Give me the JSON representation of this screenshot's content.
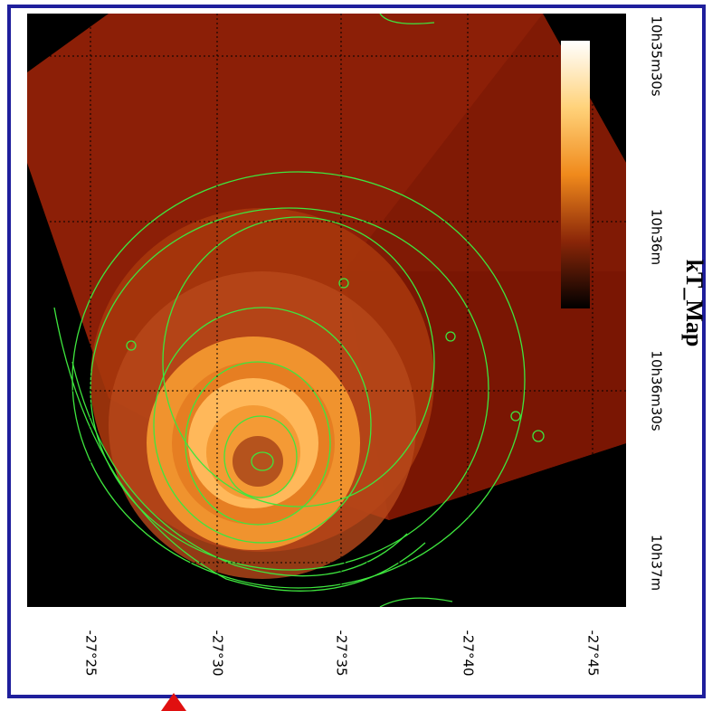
{
  "title": "kT_Map",
  "ra_labels": [
    "10h35m30s",
    "10h36m",
    "10h36m30s",
    "10h37m"
  ],
  "dec_labels": [
    "-27°25",
    "-27°30",
    "-27°35",
    "-27°40",
    "-27°45"
  ]
}
